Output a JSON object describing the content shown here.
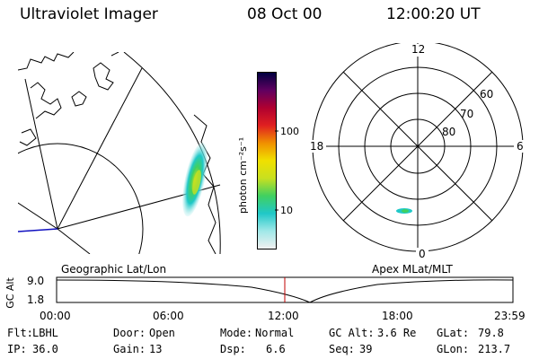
{
  "header": {
    "instrument": "Ultraviolet Imager",
    "date": "08 Oct 00",
    "time": "12:00:20 UT"
  },
  "colorbar": {
    "label": "photon cm⁻²s⁻¹",
    "ticks": [
      "100",
      "10"
    ]
  },
  "polar_plot": {
    "mlt_labels": [
      "12",
      "18",
      "6",
      "0"
    ],
    "lat_labels": [
      "60",
      "70",
      "80"
    ]
  },
  "timeline": {
    "left_label": "Geographic Lat/Lon",
    "right_label": "Apex MLat/MLT",
    "axis_title": "GC Alt",
    "y_ticks": [
      "9.0",
      "1.8"
    ],
    "x_ticks": [
      "00:00",
      "06:00",
      "12:00",
      "18:00",
      "23:59"
    ],
    "colors": {
      "current_time_marker": "#c00000",
      "orbit_line": "#000000"
    }
  },
  "info": {
    "row1": [
      {
        "key": "Flt:",
        "value": "LBHL"
      },
      {
        "key": "Door:",
        "value": "Open"
      },
      {
        "key": "Mode:",
        "value": "Normal"
      },
      {
        "key": "GC Alt:",
        "value": "3.6 Re"
      },
      {
        "key": "GLat:",
        "value": "79.8"
      }
    ],
    "row2": [
      {
        "key": "IP:",
        "value": "36.0"
      },
      {
        "key": "Gain:",
        "value": "13"
      },
      {
        "key": "Dsp:",
        "value": "6.6"
      },
      {
        "key": "Seq:",
        "value": "39"
      },
      {
        "key": "GLon:",
        "value": "213.7"
      }
    ]
  },
  "colors": {
    "colorbar_stops": [
      "#f0f0f0",
      "#a0e8e8",
      "#20c8c8",
      "#40d060",
      "#c8e020",
      "#f0e000",
      "#f09000",
      "#e02020",
      "#b00030",
      "#600060",
      "#000040"
    ]
  }
}
